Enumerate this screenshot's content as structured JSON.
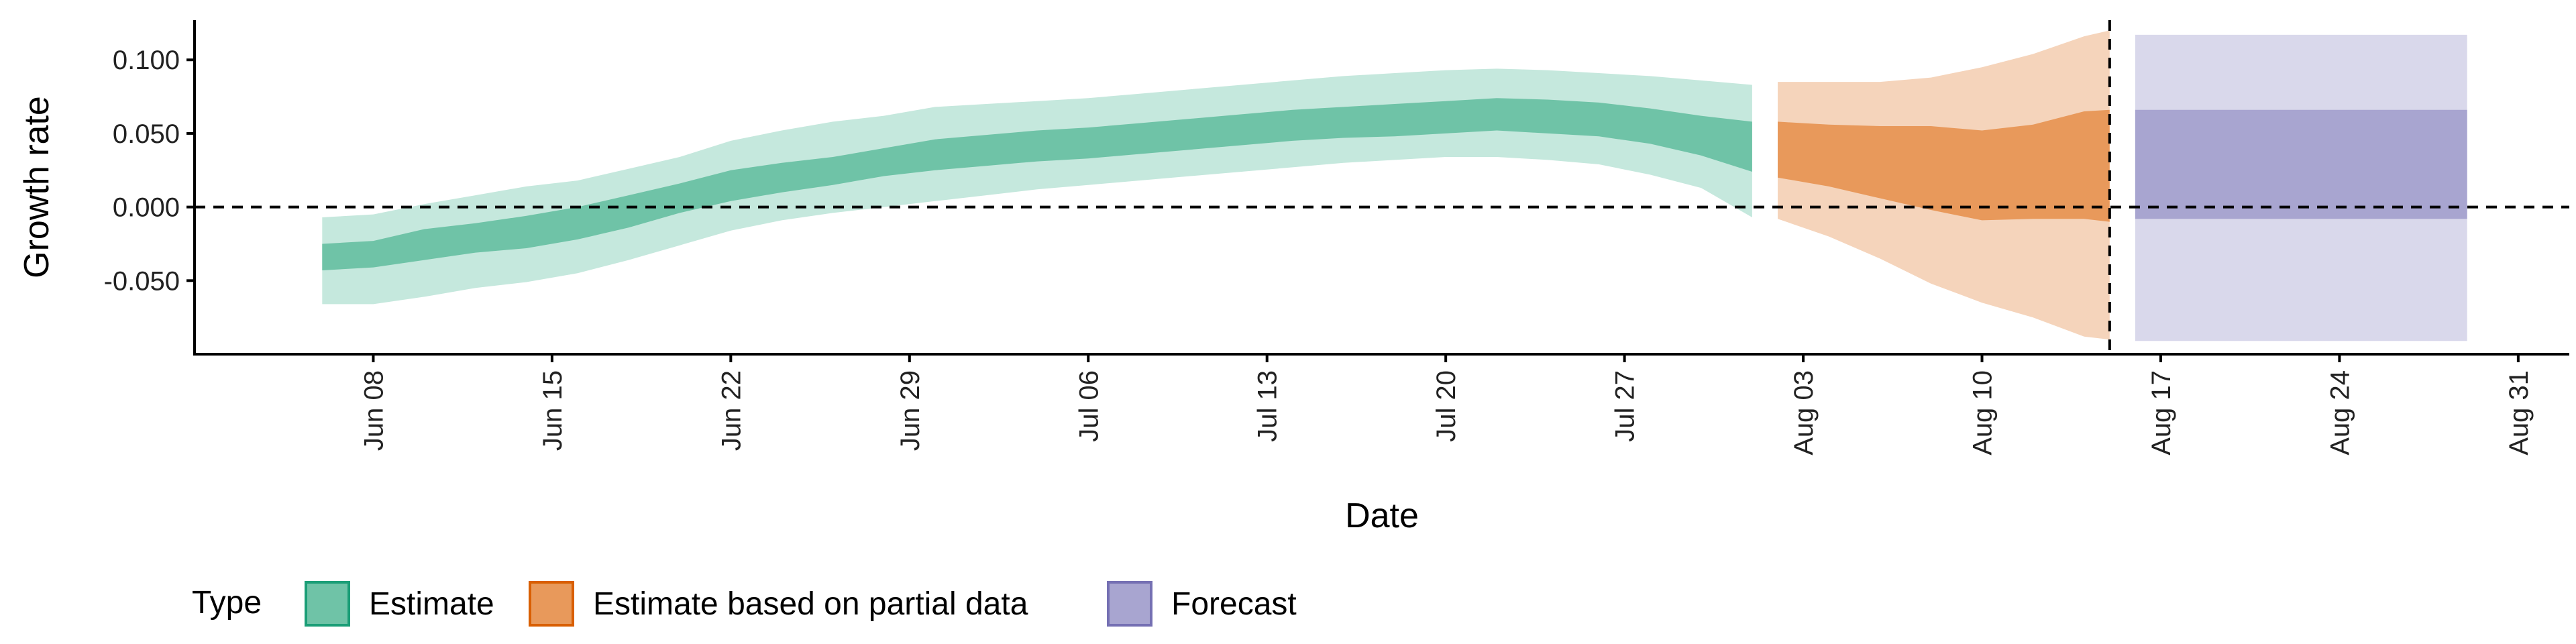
{
  "chart_data": {
    "type": "area",
    "xlabel": "Date",
    "ylabel": "Growth rate",
    "x_axis": {
      "ticks": [
        "2020-06-08",
        "2020-06-15",
        "2020-06-22",
        "2020-06-29",
        "2020-07-06",
        "2020-07-13",
        "2020-07-20",
        "2020-07-27",
        "2020-08-03",
        "2020-08-10",
        "2020-08-17",
        "2020-08-24",
        "2020-08-31"
      ],
      "tick_labels": [
        "Jun 08",
        "Jun 15",
        "Jun 22",
        "Jun 29",
        "Jul 06",
        "Jul 13",
        "Jul 20",
        "Jul 27",
        "Aug 03",
        "Aug 10",
        "Aug 17",
        "Aug 24",
        "Aug 31"
      ],
      "range": [
        "2020-06-01",
        "2020-09-02"
      ]
    },
    "y_axis": {
      "ticks": [
        0.1,
        0.05,
        0.0,
        -0.05
      ],
      "tick_labels": [
        "0.100",
        "0.050",
        "0.000",
        "-0.050"
      ],
      "range": [
        -0.1,
        0.127
      ]
    },
    "reference_lines": {
      "horizontal_y": 0.0,
      "vertical_date": "2020-08-15"
    },
    "legend": {
      "title": "Type",
      "position": "bottom",
      "items": [
        {
          "label": "Estimate",
          "fill": "#6fc3a7",
          "stroke": "#1b9e77"
        },
        {
          "label": "Estimate based on partial data",
          "fill": "#e8995b",
          "stroke": "#d95f02"
        },
        {
          "label": "Forecast",
          "fill": "#a8a5d0",
          "stroke": "#7570b3"
        }
      ]
    },
    "series": [
      {
        "name": "Estimate",
        "inner_color": "#6fc3a7",
        "outer_color": "#c5e8dd",
        "points": [
          {
            "date": "2020-06-06",
            "lo90": -0.066,
            "lo50": -0.043,
            "hi50": -0.025,
            "hi90": -0.007
          },
          {
            "date": "2020-06-08",
            "lo90": -0.066,
            "lo50": -0.041,
            "hi50": -0.023,
            "hi90": -0.005
          },
          {
            "date": "2020-06-10",
            "lo90": -0.061,
            "lo50": -0.036,
            "hi50": -0.015,
            "hi90": 0.002
          },
          {
            "date": "2020-06-12",
            "lo90": -0.055,
            "lo50": -0.031,
            "hi50": -0.011,
            "hi90": 0.008
          },
          {
            "date": "2020-06-14",
            "lo90": -0.051,
            "lo50": -0.028,
            "hi50": -0.006,
            "hi90": 0.014
          },
          {
            "date": "2020-06-16",
            "lo90": -0.045,
            "lo50": -0.022,
            "hi50": 0.0,
            "hi90": 0.018
          },
          {
            "date": "2020-06-18",
            "lo90": -0.036,
            "lo50": -0.014,
            "hi50": 0.008,
            "hi90": 0.026
          },
          {
            "date": "2020-06-20",
            "lo90": -0.026,
            "lo50": -0.004,
            "hi50": 0.016,
            "hi90": 0.034
          },
          {
            "date": "2020-06-22",
            "lo90": -0.016,
            "lo50": 0.004,
            "hi50": 0.025,
            "hi90": 0.045
          },
          {
            "date": "2020-06-24",
            "lo90": -0.009,
            "lo50": 0.01,
            "hi50": 0.03,
            "hi90": 0.052
          },
          {
            "date": "2020-06-26",
            "lo90": -0.004,
            "lo50": 0.015,
            "hi50": 0.034,
            "hi90": 0.058
          },
          {
            "date": "2020-06-28",
            "lo90": 0.0,
            "lo50": 0.021,
            "hi50": 0.04,
            "hi90": 0.062
          },
          {
            "date": "2020-06-30",
            "lo90": 0.004,
            "lo50": 0.025,
            "hi50": 0.046,
            "hi90": 0.068
          },
          {
            "date": "2020-07-02",
            "lo90": 0.008,
            "lo50": 0.028,
            "hi50": 0.049,
            "hi90": 0.07
          },
          {
            "date": "2020-07-04",
            "lo90": 0.012,
            "lo50": 0.031,
            "hi50": 0.052,
            "hi90": 0.072
          },
          {
            "date": "2020-07-06",
            "lo90": 0.015,
            "lo50": 0.033,
            "hi50": 0.054,
            "hi90": 0.074
          },
          {
            "date": "2020-07-08",
            "lo90": 0.018,
            "lo50": 0.036,
            "hi50": 0.057,
            "hi90": 0.077
          },
          {
            "date": "2020-07-10",
            "lo90": 0.021,
            "lo50": 0.039,
            "hi50": 0.06,
            "hi90": 0.08
          },
          {
            "date": "2020-07-12",
            "lo90": 0.024,
            "lo50": 0.042,
            "hi50": 0.063,
            "hi90": 0.083
          },
          {
            "date": "2020-07-14",
            "lo90": 0.027,
            "lo50": 0.045,
            "hi50": 0.066,
            "hi90": 0.086
          },
          {
            "date": "2020-07-16",
            "lo90": 0.03,
            "lo50": 0.047,
            "hi50": 0.068,
            "hi90": 0.089
          },
          {
            "date": "2020-07-18",
            "lo90": 0.032,
            "lo50": 0.048,
            "hi50": 0.07,
            "hi90": 0.091
          },
          {
            "date": "2020-07-20",
            "lo90": 0.034,
            "lo50": 0.05,
            "hi50": 0.072,
            "hi90": 0.093
          },
          {
            "date": "2020-07-22",
            "lo90": 0.034,
            "lo50": 0.052,
            "hi50": 0.074,
            "hi90": 0.094
          },
          {
            "date": "2020-07-24",
            "lo90": 0.032,
            "lo50": 0.05,
            "hi50": 0.073,
            "hi90": 0.093
          },
          {
            "date": "2020-07-26",
            "lo90": 0.029,
            "lo50": 0.048,
            "hi50": 0.071,
            "hi90": 0.091
          },
          {
            "date": "2020-07-28",
            "lo90": 0.022,
            "lo50": 0.043,
            "hi50": 0.067,
            "hi90": 0.089
          },
          {
            "date": "2020-07-30",
            "lo90": 0.013,
            "lo50": 0.035,
            "hi50": 0.062,
            "hi90": 0.086
          },
          {
            "date": "2020-08-01",
            "lo90": -0.007,
            "lo50": 0.024,
            "hi50": 0.058,
            "hi90": 0.083
          }
        ]
      },
      {
        "name": "Estimate based on partial data",
        "inner_color": "#e8995b",
        "outer_color": "#f5d4bb",
        "points": [
          {
            "date": "2020-08-02",
            "lo90": -0.008,
            "lo50": 0.02,
            "hi50": 0.058,
            "hi90": 0.085
          },
          {
            "date": "2020-08-04",
            "lo90": -0.02,
            "lo50": 0.014,
            "hi50": 0.056,
            "hi90": 0.085
          },
          {
            "date": "2020-08-06",
            "lo90": -0.035,
            "lo50": 0.006,
            "hi50": 0.055,
            "hi90": 0.085
          },
          {
            "date": "2020-08-08",
            "lo90": -0.052,
            "lo50": -0.002,
            "hi50": 0.055,
            "hi90": 0.088
          },
          {
            "date": "2020-08-10",
            "lo90": -0.065,
            "lo50": -0.009,
            "hi50": 0.052,
            "hi90": 0.095
          },
          {
            "date": "2020-08-12",
            "lo90": -0.075,
            "lo50": -0.008,
            "hi50": 0.056,
            "hi90": 0.104
          },
          {
            "date": "2020-08-14",
            "lo90": -0.088,
            "lo50": -0.008,
            "hi50": 0.065,
            "hi90": 0.116
          },
          {
            "date": "2020-08-15",
            "lo90": -0.09,
            "lo50": -0.01,
            "hi50": 0.066,
            "hi90": 0.12
          }
        ]
      },
      {
        "name": "Forecast",
        "inner_color": "#a8a5d0",
        "outer_color": "#d9d8eb",
        "points": [
          {
            "date": "2020-08-16",
            "lo90": -0.091,
            "lo50": -0.008,
            "hi50": 0.066,
            "hi90": 0.117
          },
          {
            "date": "2020-08-29",
            "lo90": -0.091,
            "lo50": -0.008,
            "hi50": 0.066,
            "hi90": 0.117
          }
        ]
      }
    ]
  }
}
